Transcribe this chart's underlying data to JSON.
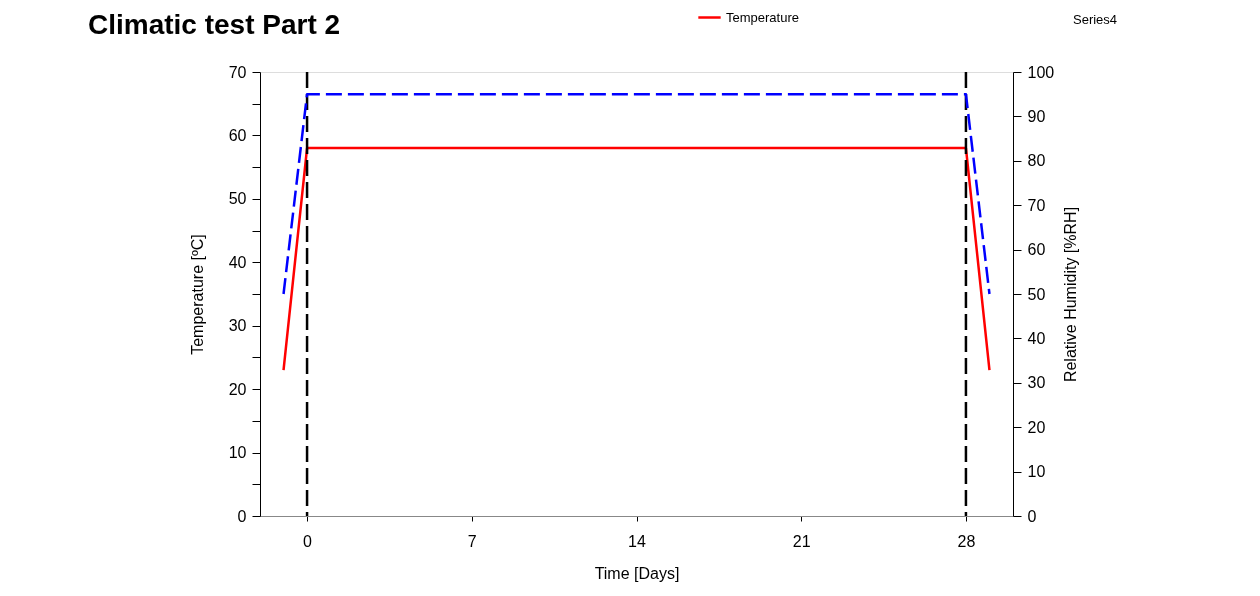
{
  "chart_data": {
    "type": "line",
    "title": "Climatic test Part 2",
    "xlabel": "Time [Days]",
    "ylabel": "Temperature [ºC]",
    "y2label": "Relative Humidity [%RH]",
    "x": [
      -1,
      0,
      28,
      29
    ],
    "series": [
      {
        "name": "Temperature",
        "color": "#ff0000",
        "values": [
          23,
          58,
          58,
          23
        ],
        "line_style": "solid"
      },
      {
        "color": "#0000ff",
        "values": [
          50,
          95,
          95,
          50
        ],
        "axis": "y2",
        "line_style": "dashed"
      }
    ],
    "xlim": [
      -2,
      30
    ],
    "xticks": [
      0,
      7,
      14,
      21,
      28
    ],
    "ylim": [
      0,
      70
    ],
    "yticks": [
      0,
      {
        "value": 5,
        "label": null
      },
      10,
      {
        "value": 15,
        "label": null
      },
      20,
      {
        "value": 25,
        "label": null
      },
      30,
      {
        "value": 35,
        "label": null
      },
      40,
      {
        "value": 45,
        "label": null
      },
      50,
      {
        "value": 55,
        "label": null
      },
      60,
      {
        "value": 65,
        "label": null
      },
      70
    ],
    "y2lim": [
      0,
      100
    ],
    "y2ticks": [
      0,
      10,
      20,
      30,
      40,
      50,
      60,
      70,
      80,
      90,
      100
    ],
    "ref_lines": [
      {
        "axis": "x",
        "value": 0,
        "color": "#000000",
        "line_style": "dashed"
      },
      {
        "axis": "x",
        "value": 28,
        "color": "#000000",
        "line_style": "dashed"
      }
    ],
    "annotations": [
      "Series4"
    ],
    "legend": "top",
    "grid": false,
    "marker": "none"
  }
}
